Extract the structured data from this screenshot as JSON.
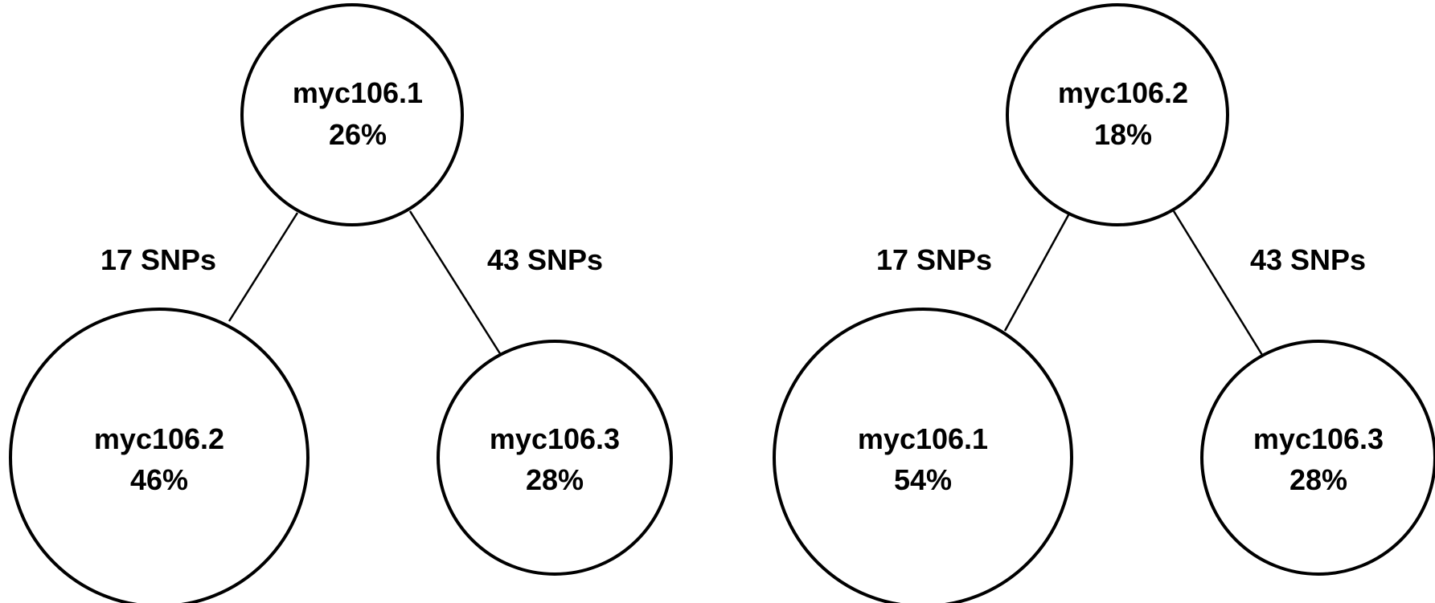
{
  "trees": [
    {
      "root": {
        "name": "myc106.1",
        "percent": "26%"
      },
      "left_child": {
        "name": "myc106.2",
        "percent": "46%"
      },
      "right_child": {
        "name": "myc106.3",
        "percent": "28%"
      },
      "left_edge_label": "17 SNPs",
      "right_edge_label": "43 SNPs"
    },
    {
      "root": {
        "name": "myc106.2",
        "percent": "18%"
      },
      "left_child": {
        "name": "myc106.1",
        "percent": "54%"
      },
      "right_child": {
        "name": "myc106.3",
        "percent": "28%"
      },
      "left_edge_label": "17 SNPs",
      "right_edge_label": "43 SNPs"
    }
  ]
}
